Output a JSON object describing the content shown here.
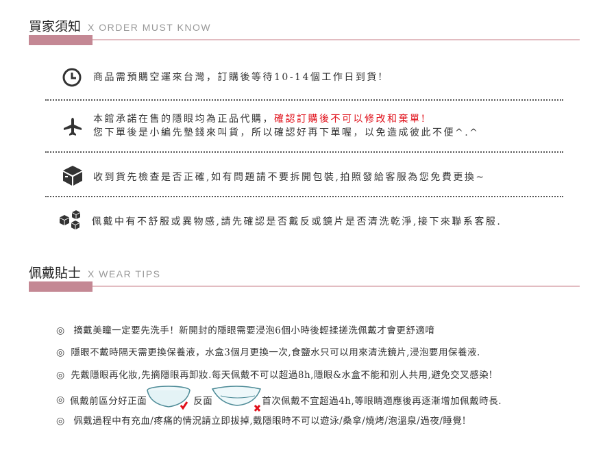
{
  "order_section": {
    "title": "買家須知",
    "sub": "X  ORDER MUST KNOW",
    "rows": [
      {
        "icon": "clock-icon",
        "text": "商品需預購空運來台灣，訂購後等待10-14個工作日到貨!"
      },
      {
        "icon": "airplane-icon",
        "text": "本館承諾在售的隱眼均為正品代購，",
        "highlight": "確認訂購後不可以修改和棄單!",
        "text2": "您下單後是小編先墊錢來叫貨，所以確認好再下單喔，以免造成彼此不便^.^"
      },
      {
        "icon": "box-icon",
        "text": "收到貨先檢查是否正確,如有問題請不要拆開包裝,拍照發給客服為您免費更換~"
      },
      {
        "icon": "cubes-icon",
        "text": "佩戴中有不舒服或異物感,請先確認是否戴反或鏡片是否清洗乾淨,接下來聯系客服."
      }
    ],
    "highlight_color": "#e0101a"
  },
  "wear_section": {
    "title": "佩戴貼士",
    "sub": "X  WEAR TIPS",
    "bullet": "◎",
    "tips": [
      "摘戴美瞳一定要先洗手！新開封的隱眼需要浸泡6個小時後輕揉搓洗佩戴才會更舒適唷",
      "隱眼不戴時隔天需更換保養液，水盒3個月更換一次,食鹽水只可以用來清洗鏡片,浸泡要用保養液.",
      "先戴隱眼再化妝,先摘隱眼再卸妝.每天佩戴不可以超過8h,隱眼&水盒不能和別人共用,避免交叉感染!"
    ],
    "tip4": {
      "a": "佩戴前區分好正面",
      "b": "反面",
      "c": "首次佩戴不宜超過4h,等眼睛適應後再逐漸增加佩戴時長."
    },
    "tip5": "佩戴過程中有充血/疼痛的情況請立即拔掉,戴隱眼時不可以遊泳/桑拿/燒烤/泡溫泉/過夜/睡覺!"
  },
  "colors": {
    "accent": "#c48894",
    "line": "#e2bcc1"
  }
}
